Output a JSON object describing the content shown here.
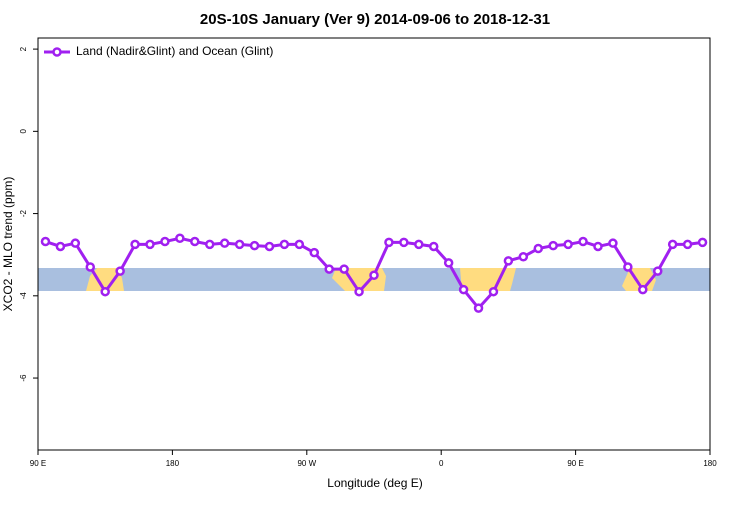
{
  "chart_data": {
    "type": "line",
    "title": "20S-10S January (Ver 9)   2014-09-06 to 2018-12-31",
    "x_label": "Longitude (deg E)",
    "y_label": "XCO2 - MLO trend (ppm)",
    "x": [
      95,
      105,
      115,
      125,
      135,
      145,
      155,
      165,
      175,
      185,
      195,
      205,
      215,
      225,
      235,
      245,
      255,
      265,
      275,
      285,
      295,
      305,
      315,
      325,
      335,
      345,
      355,
      365,
      375,
      385,
      395,
      405,
      415,
      425,
      435,
      445,
      455,
      465,
      475,
      485,
      495,
      505,
      515,
      525,
      535
    ],
    "series": [
      {
        "name": "Land (Nadir&Glint) and Ocean (Glint)",
        "color": "#a020f0",
        "values": [
          -2.68,
          -2.8,
          -2.72,
          -3.3,
          -3.9,
          -3.4,
          -2.75,
          -2.75,
          -2.68,
          -2.6,
          -2.68,
          -2.75,
          -2.72,
          -2.75,
          -2.78,
          -2.8,
          -2.75,
          -2.75,
          -2.95,
          -3.35,
          -3.35,
          -3.9,
          -3.5,
          -2.7,
          -2.7,
          -2.75,
          -2.8,
          -3.2,
          -3.85,
          -4.3,
          -3.9,
          -3.15,
          -3.05,
          -2.85,
          -2.78,
          -2.75,
          -2.68,
          -2.8,
          -2.72,
          -3.3,
          -3.85,
          -3.4,
          -2.75,
          -2.75,
          -2.7
        ]
      }
    ],
    "xlim": [
      90,
      540
    ],
    "xticks": [
      {
        "value": 90,
        "label": "90 E"
      },
      180,
      {
        "value": 270,
        "label": "90 W"
      },
      {
        "value": 360,
        "label": "0"
      },
      {
        "value": 450,
        "label": "90 E"
      },
      {
        "value": 540,
        "label": "180"
      }
    ],
    "ylim": [
      -7.75,
      2.27
    ],
    "yticks": [
      -6,
      -4,
      -2,
      0,
      2
    ],
    "legend": "top-left"
  }
}
